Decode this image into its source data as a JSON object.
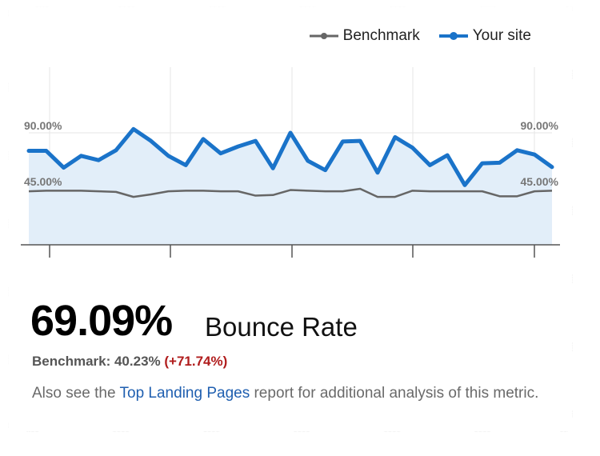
{
  "legend": {
    "benchmark_label": "Benchmark",
    "site_label": "Your site"
  },
  "colors": {
    "site": "#1a73c9",
    "benchmark": "#666666",
    "area": "#e2eef9",
    "delta": "#b01c1c",
    "link": "#1f5fb0"
  },
  "chart_data": {
    "type": "line",
    "ylim": [
      0,
      135
    ],
    "y_ticks": [
      "90.00%",
      "45.00%"
    ],
    "y_tick_values": [
      90,
      45
    ],
    "series": [
      {
        "name": "Your site",
        "values": [
          75.5,
          75.5,
          62,
          71.5,
          68,
          76,
          93,
          83.5,
          71.5,
          64,
          85,
          73.5,
          79,
          83.5,
          61.5,
          90,
          67.5,
          60,
          83,
          83.5,
          58,
          86.5,
          78,
          64,
          72,
          48,
          65.5,
          66,
          76,
          72.5,
          62.5
        ]
      },
      {
        "name": "Benchmark",
        "values": [
          43,
          43.5,
          43.5,
          43.5,
          43,
          42.5,
          38.5,
          40.5,
          43,
          43.5,
          43.5,
          43,
          43,
          39.5,
          40,
          44,
          43.5,
          43,
          43,
          45,
          38.5,
          38.5,
          43.5,
          43,
          43,
          43,
          43,
          39,
          39,
          43,
          43.5
        ]
      }
    ]
  },
  "summary": {
    "value": "69.09%",
    "metric": "Bounce Rate",
    "benchmark_prefix": "Benchmark: 40.23% ",
    "benchmark_delta": "(+71.74%)",
    "note_before": "Also see the ",
    "note_link": "Top Landing Pages",
    "note_after": " report for additional analysis of this metric."
  }
}
